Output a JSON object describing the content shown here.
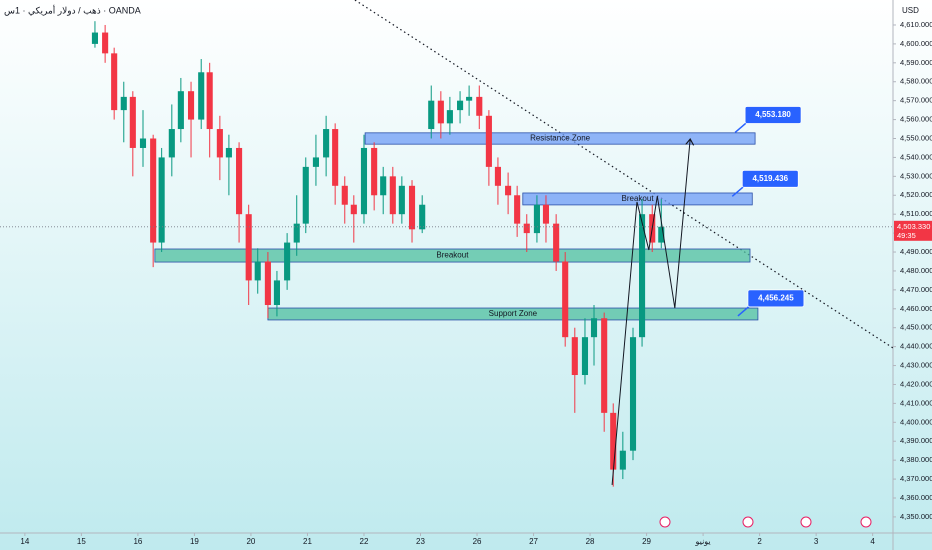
{
  "chart_data": {
    "type": "candlestick",
    "title": "ذهب / دولار أمريكي · 1س · OANDA",
    "currency": "USD",
    "up_color": "#089981",
    "down_color": "#f23645",
    "xlim": [
      -0.44,
      15.36
    ],
    "ylim": [
      4341.5,
      4623.2
    ],
    "xticks": [
      {
        "value": 0,
        "label": "14"
      },
      {
        "value": 1,
        "label": "15"
      },
      {
        "value": 2,
        "label": "16"
      },
      {
        "value": 3,
        "label": "19"
      },
      {
        "value": 4,
        "label": "20"
      },
      {
        "value": 5,
        "label": "21"
      },
      {
        "value": 6,
        "label": "22"
      },
      {
        "value": 7,
        "label": "23"
      },
      {
        "value": 8,
        "label": "26"
      },
      {
        "value": 9,
        "label": "27"
      },
      {
        "value": 10,
        "label": "28"
      },
      {
        "value": 11,
        "label": "29"
      },
      {
        "value": 12,
        "label": "يونيو"
      },
      {
        "value": 13,
        "label": "2"
      },
      {
        "value": 14,
        "label": "3"
      },
      {
        "value": 15,
        "label": "4"
      }
    ],
    "yticks": [
      {
        "value": 4350,
        "label": "4,350.000"
      },
      {
        "value": 4360,
        "label": "4,360.000"
      },
      {
        "value": 4370,
        "label": "4,370.000"
      },
      {
        "value": 4380,
        "label": "4,380.000"
      },
      {
        "value": 4390,
        "label": "4,390.000"
      },
      {
        "value": 4400,
        "label": "4,400.000"
      },
      {
        "value": 4410,
        "label": "4,410.000"
      },
      {
        "value": 4420,
        "label": "4,420.000"
      },
      {
        "value": 4430,
        "label": "4,430.000"
      },
      {
        "value": 4440,
        "label": "4,440.000"
      },
      {
        "value": 4450,
        "label": "4,450.000"
      },
      {
        "value": 4460,
        "label": "4,460.000"
      },
      {
        "value": 4470,
        "label": "4,470.000"
      },
      {
        "value": 4480,
        "label": "4,480.000"
      },
      {
        "value": 4490,
        "label": "4,490.000"
      },
      {
        "value": 4500,
        "label": "4,500.000"
      },
      {
        "value": 4510,
        "label": "4,510.000"
      },
      {
        "value": 4520,
        "label": "4,520.000"
      },
      {
        "value": 4530,
        "label": "4,530.000"
      },
      {
        "value": 4540,
        "label": "4,540.000"
      },
      {
        "value": 4550,
        "label": "4,550.000"
      },
      {
        "value": 4560,
        "label": "4,560.000"
      },
      {
        "value": 4570,
        "label": "4,570.000"
      },
      {
        "value": 4580,
        "label": "4,580.000"
      },
      {
        "value": 4590,
        "label": "4,590.000"
      },
      {
        "value": 4600,
        "label": "4,600.000"
      },
      {
        "value": 4610,
        "label": "4,610.000"
      }
    ],
    "candles": {
      "x": [
        1.24,
        1.42,
        1.58,
        1.75,
        1.91,
        2.09,
        2.27,
        2.42,
        2.6,
        2.76,
        2.94,
        3.12,
        3.27,
        3.45,
        3.61,
        3.79,
        3.96,
        4.12,
        4.3,
        4.46,
        4.64,
        4.81,
        4.97,
        5.15,
        5.33,
        5.49,
        5.66,
        5.82,
        6.0,
        6.18,
        6.34,
        6.51,
        6.67,
        6.85,
        7.03,
        7.19,
        7.36,
        7.52,
        7.7,
        7.86,
        8.04,
        8.21,
        8.37,
        8.55,
        8.71,
        8.88,
        9.06,
        9.22,
        9.4,
        9.56,
        9.73,
        9.91,
        10.07,
        10.25,
        10.41,
        10.58,
        10.76,
        10.92,
        11.1,
        11.26
      ],
      "open": [
        4600,
        4606,
        4595,
        4565,
        4572,
        4545,
        4550,
        4495,
        4540,
        4555,
        4575,
        4560,
        4585,
        4555,
        4540,
        4545,
        4510,
        4475,
        4485,
        4462,
        4475,
        4495,
        4505,
        4535,
        4540,
        4555,
        4525,
        4515,
        4510,
        4545,
        4520,
        4530,
        4510,
        4525,
        4502,
        4555,
        4570,
        4558,
        4565,
        4570,
        4572,
        4562,
        4535,
        4525,
        4520,
        4505,
        4500,
        4515,
        4505,
        4485,
        4445,
        4425,
        4445,
        4455,
        4405,
        4375,
        4385,
        4445,
        4510,
        4495
      ],
      "high": [
        4612,
        4610,
        4598,
        4580,
        4575,
        4565,
        4552,
        4545,
        4568,
        4582,
        4580,
        4592,
        4590,
        4562,
        4552,
        4548,
        4515,
        4492,
        4490,
        4480,
        4500,
        4520,
        4540,
        4552,
        4562,
        4558,
        4530,
        4520,
        4552,
        4548,
        4535,
        4535,
        4530,
        4528,
        4520,
        4578,
        4575,
        4572,
        4575,
        4578,
        4578,
        4565,
        4540,
        4532,
        4525,
        4510,
        4520,
        4520,
        4510,
        4490,
        4450,
        4455,
        4462,
        4458,
        4410,
        4395,
        4450,
        4518,
        4515,
        4518
      ],
      "low": [
        4598,
        4590,
        4560,
        4548,
        4530,
        4535,
        4482,
        4490,
        4530,
        4548,
        4540,
        4555,
        4540,
        4528,
        4520,
        4495,
        4462,
        4468,
        4455,
        4456,
        4470,
        4488,
        4500,
        4525,
        4530,
        4515,
        4505,
        4495,
        4505,
        4512,
        4510,
        4505,
        4505,
        4495,
        4500,
        4550,
        4550,
        4552,
        4558,
        4562,
        4555,
        4525,
        4515,
        4510,
        4498,
        4490,
        4495,
        4495,
        4480,
        4440,
        4405,
        4420,
        4430,
        4395,
        4366,
        4370,
        4380,
        4440,
        4490,
        4492
      ],
      "close": [
        4606,
        4595,
        4565,
        4572,
        4545,
        4550,
        4495,
        4540,
        4555,
        4575,
        4560,
        4585,
        4555,
        4540,
        4545,
        4510,
        4475,
        4485,
        4462,
        4475,
        4495,
        4505,
        4535,
        4540,
        4555,
        4525,
        4515,
        4510,
        4545,
        4520,
        4530,
        4510,
        4525,
        4502,
        4515,
        4570,
        4558,
        4565,
        4570,
        4572,
        4562,
        4535,
        4525,
        4520,
        4505,
        4500,
        4515,
        4505,
        4485,
        4445,
        4425,
        4445,
        4455,
        4405,
        4375,
        4385,
        4445,
        4510,
        4495,
        4503.33
      ]
    },
    "zones": [
      {
        "label": "Resistance Zone",
        "x": [
          6.02,
          12.92
        ],
        "y": [
          4547,
          4553
        ],
        "color": "#6f9cf5",
        "tag": {
          "value": 4553.18,
          "label": "4,553.180"
        }
      },
      {
        "label": "Breakout",
        "x": [
          8.81,
          12.87
        ],
        "y": [
          4514.9,
          4521.2
        ],
        "color": "#6f9cf5",
        "tag": {
          "value": 4519.436,
          "label": "4,519.436"
        }
      },
      {
        "label": "Breakout",
        "x": [
          2.3,
          12.83
        ],
        "y": [
          4484.7,
          4491.6
        ],
        "color": "#4fbf9f"
      },
      {
        "label": "Support Zone",
        "x": [
          4.3,
          12.97
        ],
        "y": [
          4454.1,
          4460.4
        ],
        "color": "#4fbf9f",
        "tag": {
          "value": 4456.245,
          "label": "4,456.245"
        }
      }
    ],
    "trendline": {
      "x": [
        5.84,
        15.36
      ],
      "y": [
        4623.2,
        4439.3
      ]
    },
    "projection": {
      "x": [
        10.39,
        10.83,
        11.04,
        11.19,
        11.5,
        11.77
      ],
      "y": [
        4366.9,
        4516.5,
        4491.1,
        4519.6,
        4460.4,
        4549.2
      ]
    },
    "last_price": {
      "value": 4503.33,
      "label": "4,503.330",
      "countdown": "49:35"
    }
  }
}
